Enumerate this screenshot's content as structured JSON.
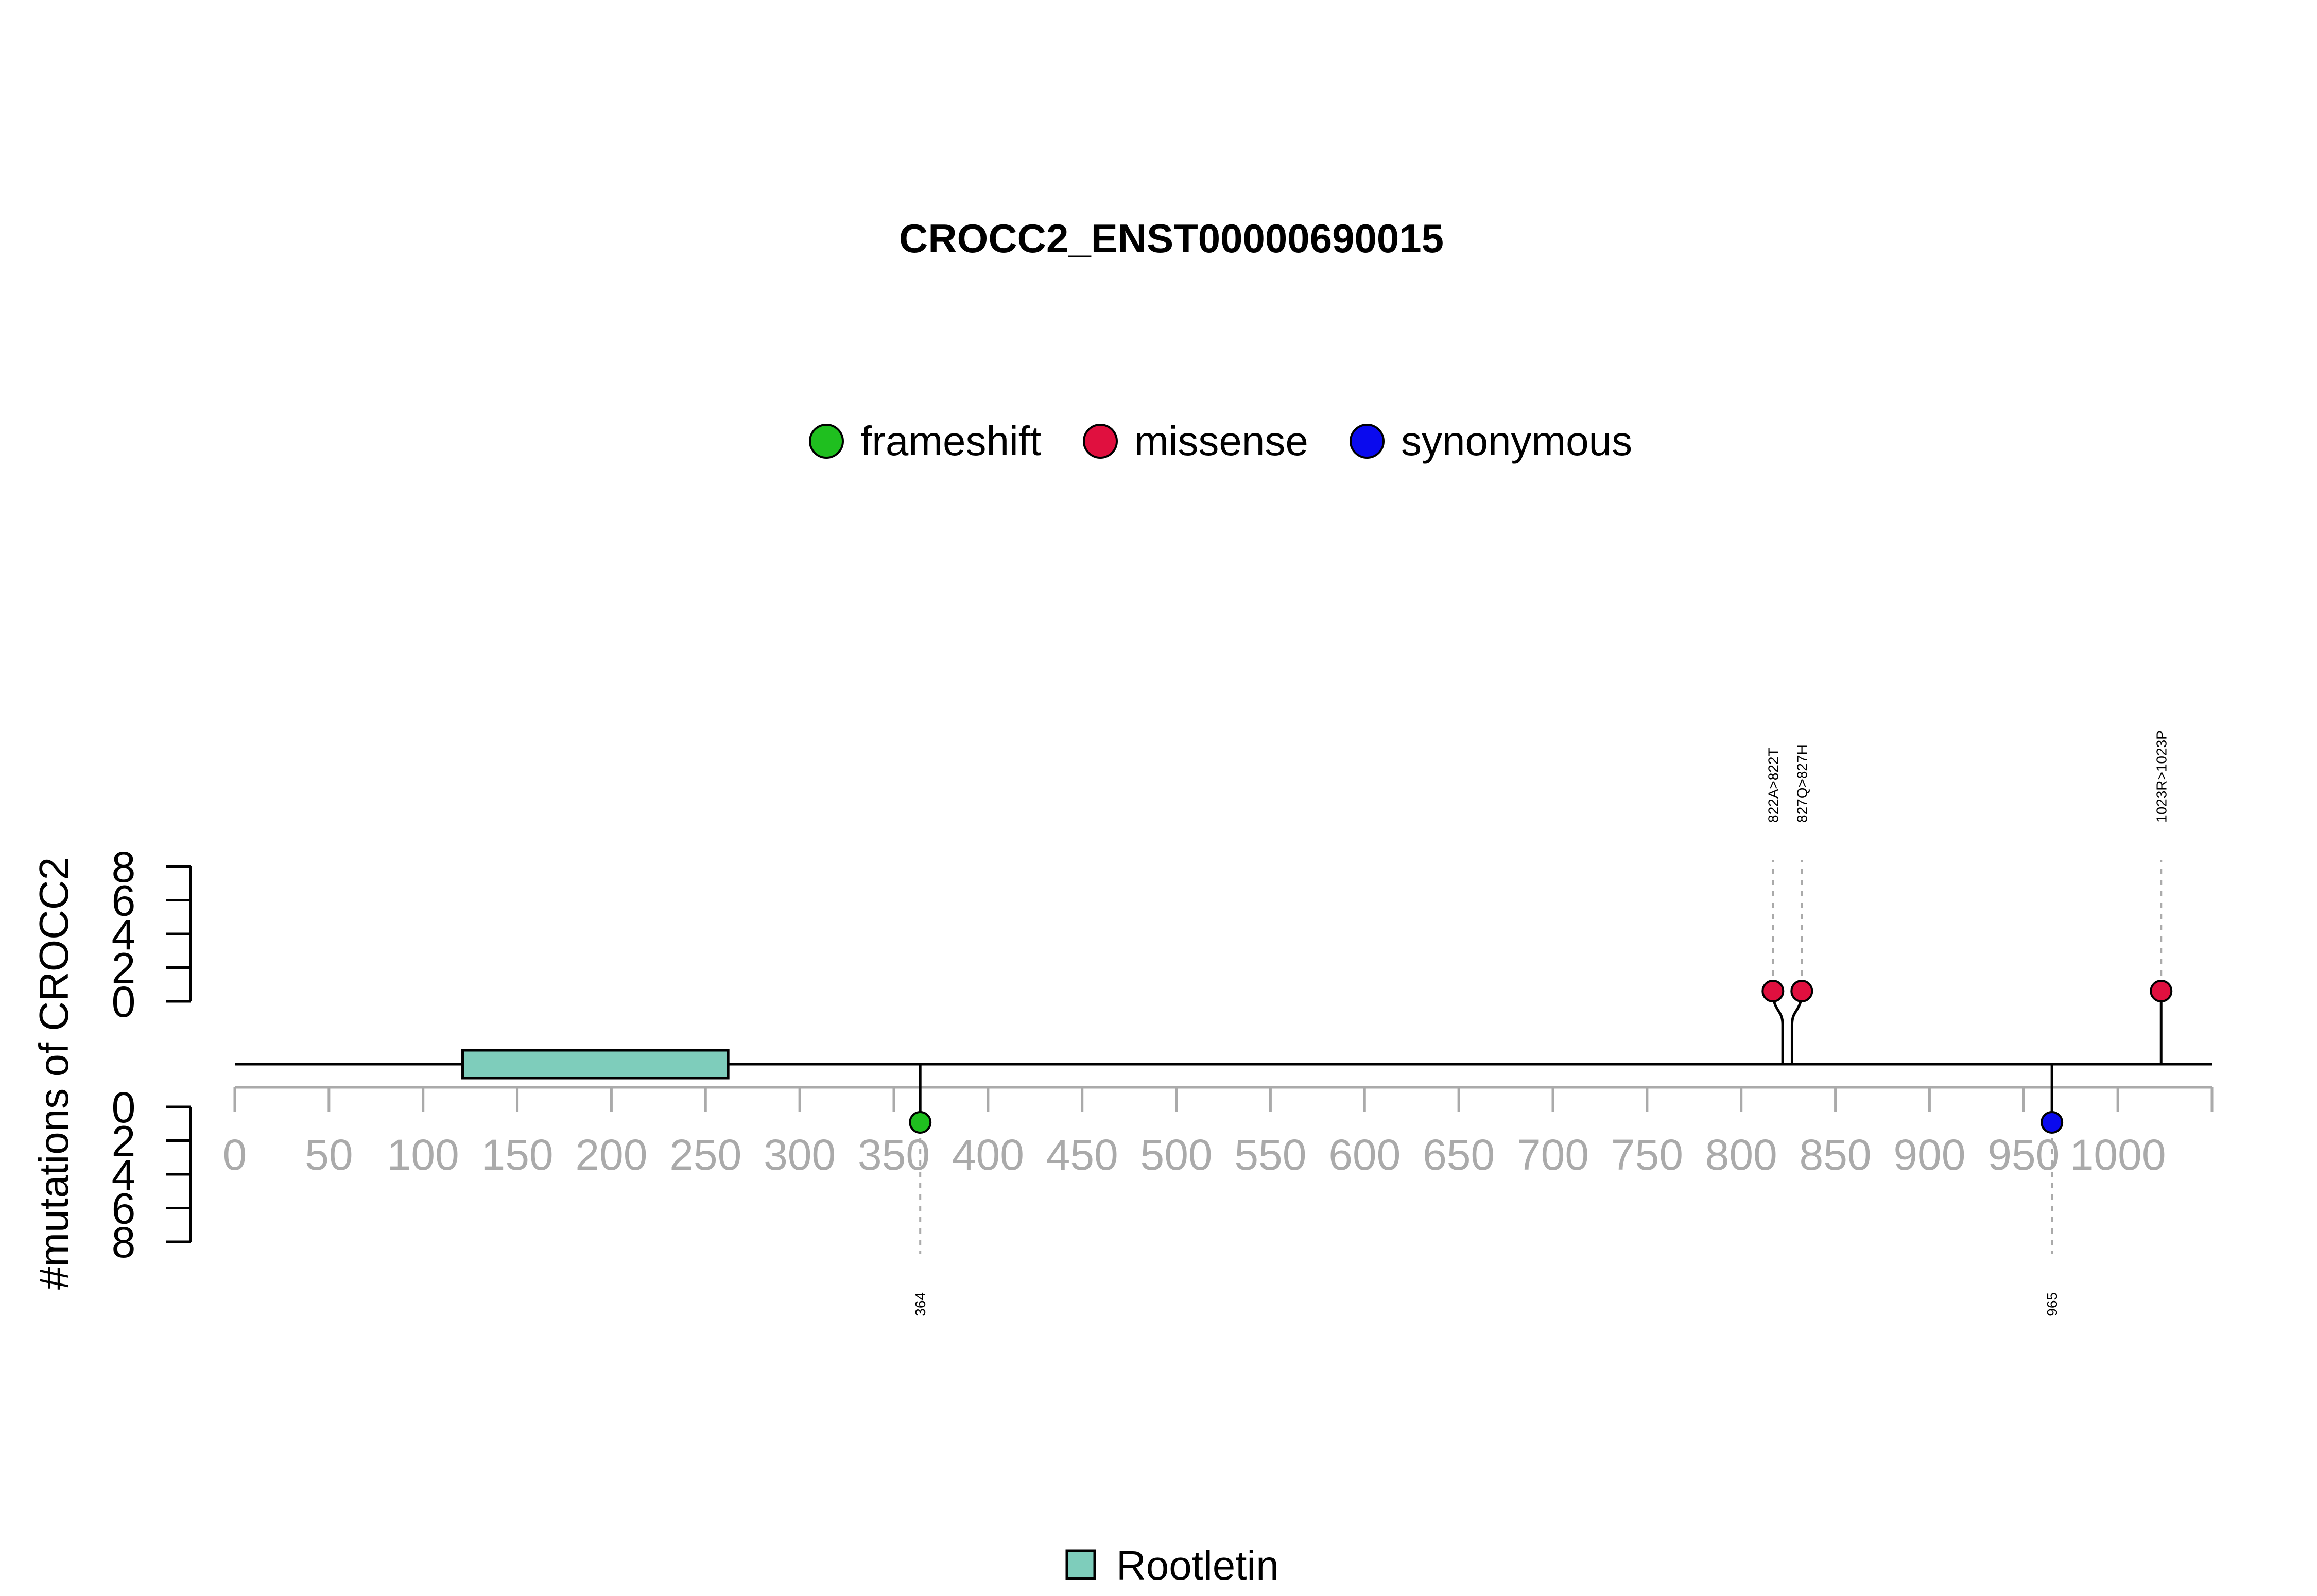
{
  "chart_data": {
    "type": "lollipop",
    "title": "CROCC2_ENST00000690015",
    "ylabel": "#mutations of CROCC2",
    "xlim": [
      0,
      1050
    ],
    "x_ticks": [
      0,
      50,
      100,
      150,
      200,
      250,
      300,
      350,
      400,
      450,
      500,
      550,
      600,
      650,
      700,
      750,
      800,
      850,
      900,
      950,
      1000
    ],
    "y_ticks": [
      0,
      2,
      4,
      6,
      8
    ],
    "ylim": [
      0,
      8
    ],
    "legend": [
      {
        "label": "frameshift",
        "color": "#1fbf1f"
      },
      {
        "label": "missense",
        "color": "#e0103f"
      },
      {
        "label": "synonymous",
        "color": "#0a0aee"
      }
    ],
    "domains": [
      {
        "name": "Rootletin",
        "start": 121,
        "end": 262,
        "color": "#7ecdbb"
      }
    ],
    "mutations": [
      {
        "position": 364,
        "label": "364",
        "type": "frameshift",
        "count": 1,
        "side": "bottom"
      },
      {
        "position": 822,
        "label": "822A>822T",
        "type": "missense",
        "count": 1,
        "side": "top"
      },
      {
        "position": 827,
        "label": "827Q>827H",
        "type": "missense",
        "count": 1,
        "side": "top"
      },
      {
        "position": 965,
        "label": "965",
        "type": "synonymous",
        "count": 1,
        "side": "bottom"
      },
      {
        "position": 1023,
        "label": "1023R>1023P",
        "type": "missense",
        "count": 1,
        "side": "top"
      }
    ]
  }
}
